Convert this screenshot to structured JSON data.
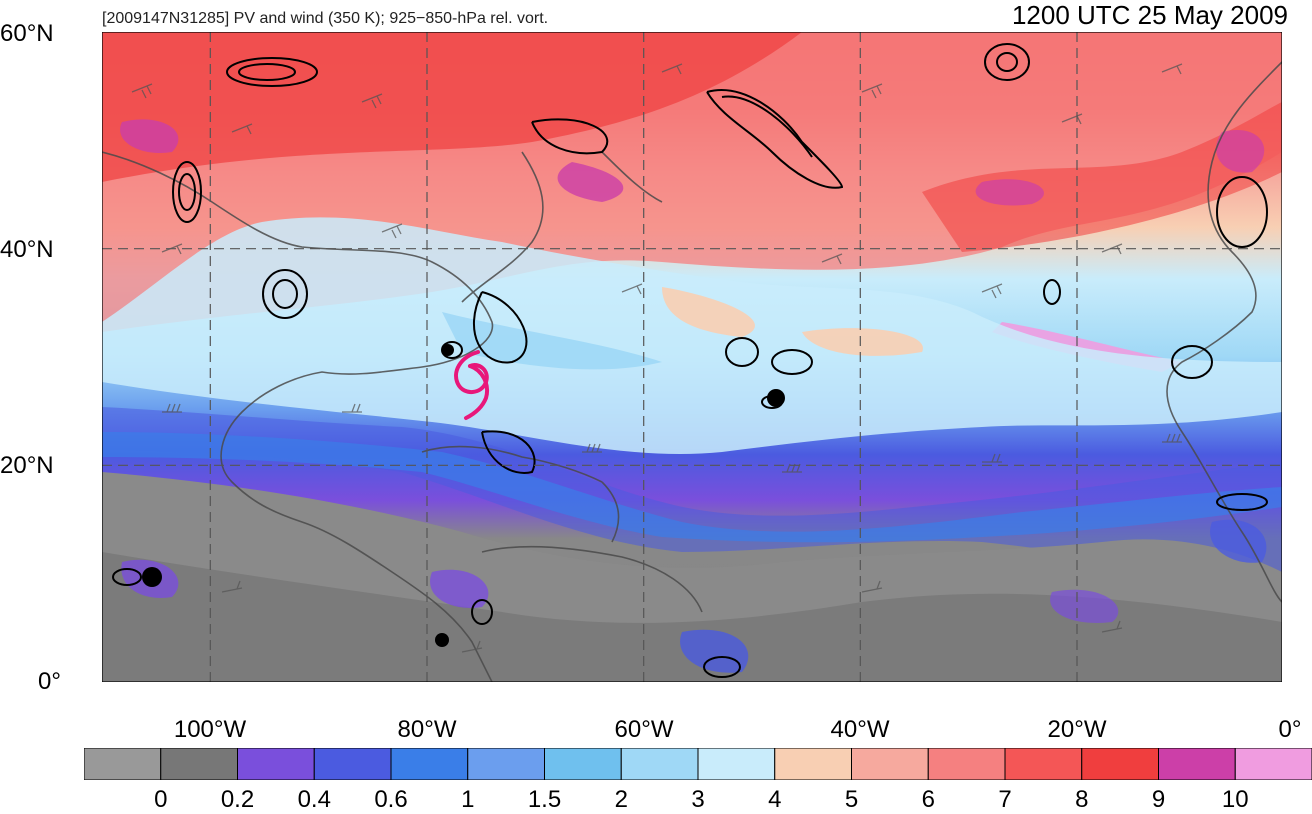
{
  "header": {
    "left_title": "[2009147N31285] PV and wind (350 K); 925−850-hPa rel. vort.",
    "right_title": "1200 UTC 25 May 2009"
  },
  "map": {
    "lat_labels": [
      "60°N",
      "40°N",
      "20°N",
      "0°"
    ],
    "lon_labels": [
      "100°W",
      "80°W",
      "60°W",
      "40°W",
      "20°W",
      "0°"
    ],
    "storm_symbol": "tropical-cyclone-icon",
    "storm_color": "#e8177a"
  },
  "colorbar": {
    "colors": [
      "#999999",
      "#777777",
      "#7a4fdc",
      "#4b5be0",
      "#3a7ee8",
      "#6b9eee",
      "#6fc0ee",
      "#9fd8f6",
      "#c9ecfb",
      "#f8cfb3",
      "#f6a99e",
      "#f58080",
      "#f45656",
      "#f03e3e",
      "#cc3fa8",
      "#f09ce0"
    ],
    "labels": [
      "0",
      "0.2",
      "0.4",
      "0.6",
      "1",
      "1.5",
      "2",
      "3",
      "4",
      "5",
      "6",
      "7",
      "8",
      "9",
      "10"
    ]
  }
}
